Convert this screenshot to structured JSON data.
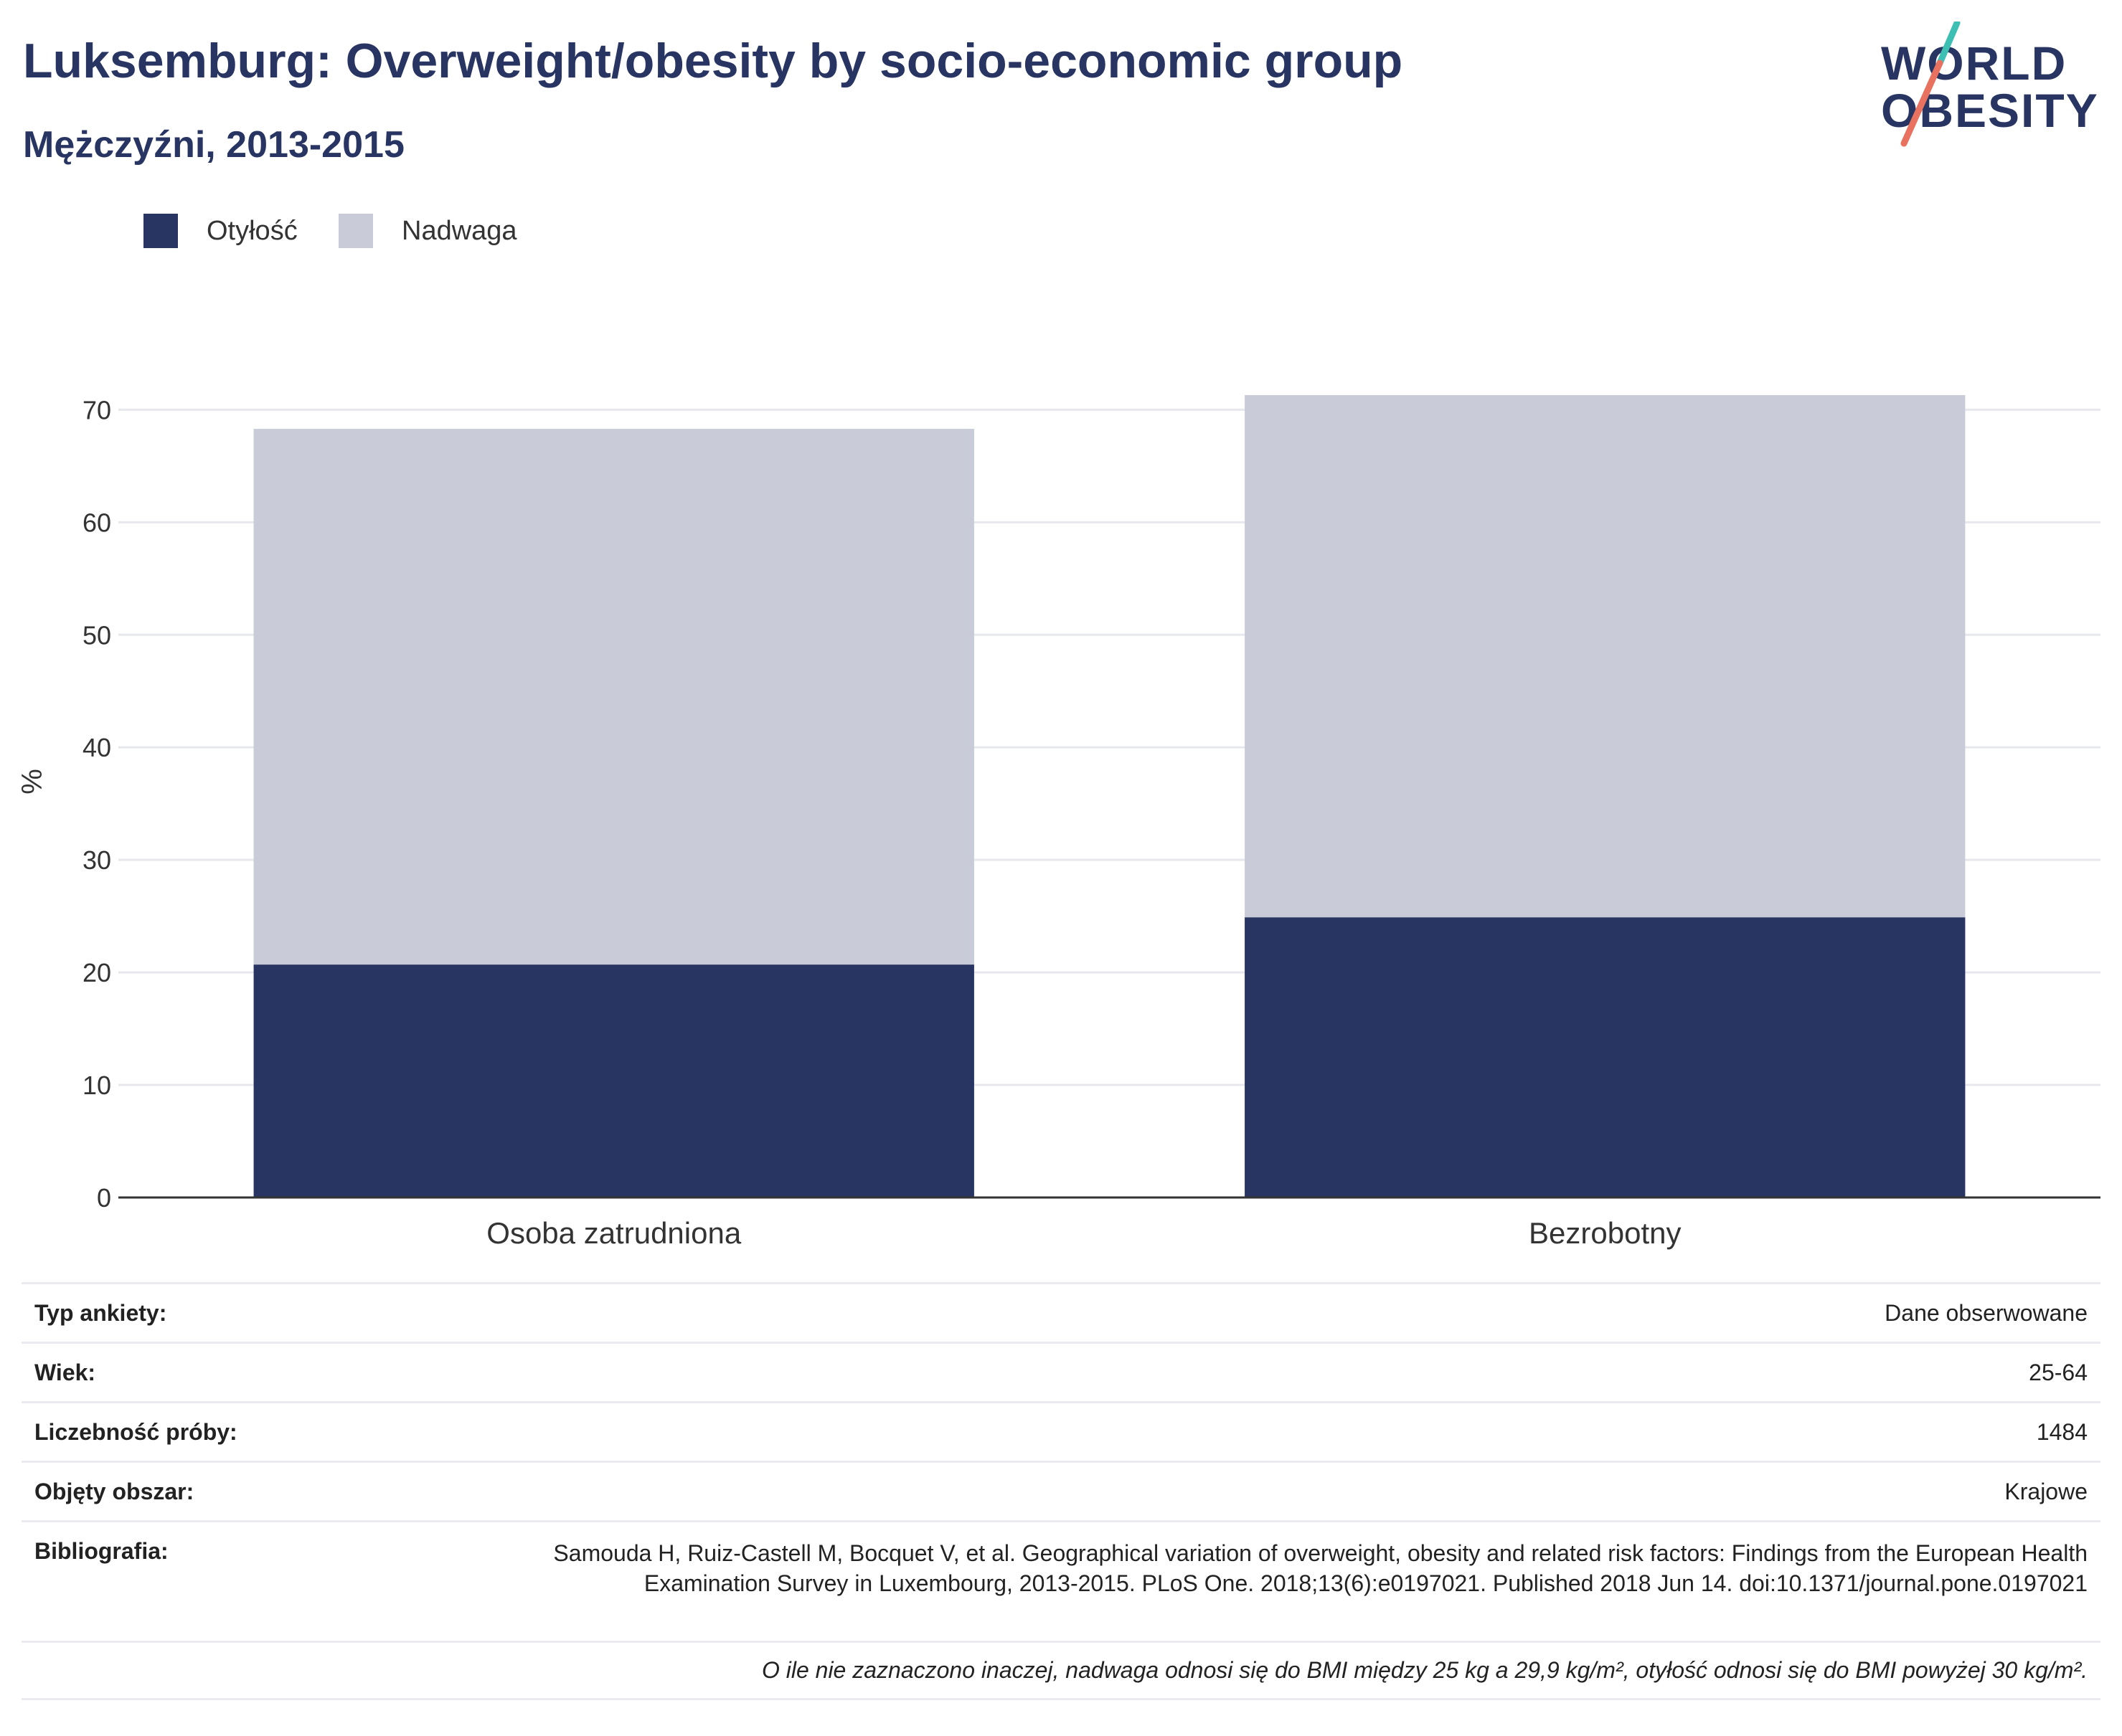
{
  "header": {
    "title": "Luksemburg: Overweight/obesity by socio-economic group",
    "subtitle": "Mężczyźni, 2013-2015"
  },
  "logo": {
    "line1": "WORLD",
    "line2": "OBESITY"
  },
  "colors": {
    "obesity": "#283562",
    "overweight": "#c9ccd8",
    "grid": "#e6e8ee",
    "axis": "#333333",
    "logo_accent_teal": "#3dbfb4",
    "logo_accent_coral": "#e8715f"
  },
  "legend": [
    {
      "label": "Otyłość",
      "color": "#283562"
    },
    {
      "label": "Nadwaga",
      "color": "#c9ccd8"
    }
  ],
  "chart_data": {
    "type": "bar",
    "stacked": true,
    "categories": [
      "Osoba zatrudniona",
      "Bezrobotny"
    ],
    "series": [
      {
        "name": "Otyłość",
        "values": [
          20.7,
          24.9
        ]
      },
      {
        "name": "Nadwaga",
        "values": [
          47.6,
          46.4
        ]
      }
    ],
    "ylabel": "%",
    "ylim": [
      0,
      72
    ],
    "yticks": [
      0,
      10,
      20,
      30,
      40,
      50,
      60,
      70
    ],
    "grid": true,
    "legend_position": "top-left"
  },
  "info": {
    "rows": [
      {
        "label": "Typ ankiety:",
        "value": "Dane obserwowane"
      },
      {
        "label": "Wiek:",
        "value": "25-64"
      },
      {
        "label": "Liczebność próby:",
        "value": "1484"
      },
      {
        "label": "Objęty obszar:",
        "value": "Krajowe"
      }
    ],
    "bibliography_label": "Bibliografia:",
    "bibliography": "Samouda H, Ruiz-Castell M, Bocquet V, et al. Geographical variation of overweight, obesity and related risk factors: Findings from the European Health Examination Survey in Luxembourg, 2013-2015. PLoS One. 2018;13(6):e0197021. Published 2018 Jun 14. doi:10.1371/journal.pone.0197021",
    "note": "O ile nie zaznaczono inaczej, nadwaga odnosi się do BMI między 25 kg a 29,9 kg/m², otyłość odnosi się do BMI powyżej 30 kg/m²."
  }
}
